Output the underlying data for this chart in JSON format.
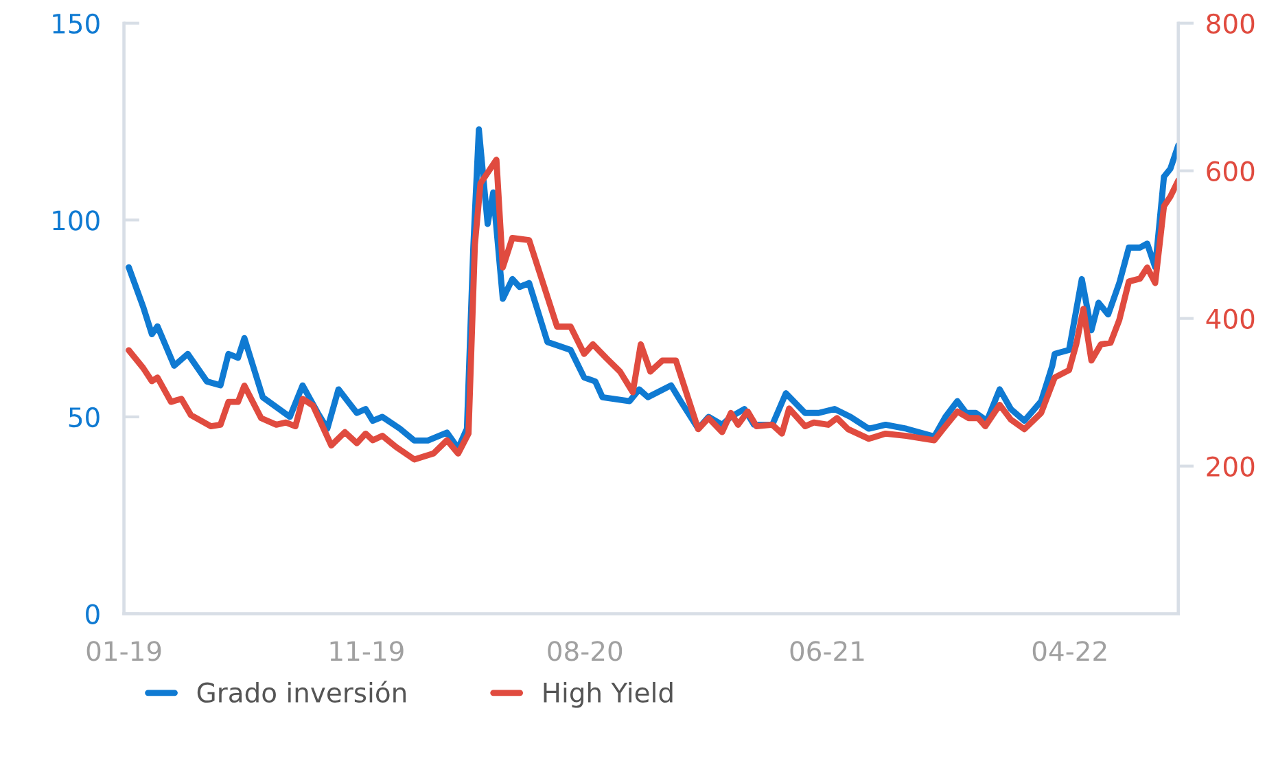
{
  "chart_data": {
    "type": "line",
    "xlim": [
      "2019-01-01",
      "2022-08-15"
    ],
    "xticks": [
      {
        "value": "2019-01-01",
        "label": "01-19"
      },
      {
        "value": "2019-11-01",
        "label": "11-19"
      },
      {
        "value": "2020-08-01",
        "label": "08-20"
      },
      {
        "value": "2021-06-01",
        "label": "06-21"
      },
      {
        "value": "2022-04-01",
        "label": "04-22"
      }
    ],
    "ylim": [
      0,
      150
    ],
    "yticks": [
      0,
      50,
      100,
      150
    ],
    "y2lim": [
      0,
      800
    ],
    "y2ticks": [
      200,
      400,
      600,
      800
    ],
    "grid": false,
    "legend": "bottom",
    "line_style": "solid",
    "marker": "none",
    "series": [
      {
        "name": "Grado inversión",
        "color": "#0f7ad2",
        "x": [
          "2019-01-07",
          "2019-01-25",
          "2019-02-05",
          "2019-02-12",
          "2019-03-05",
          "2019-03-22",
          "2019-04-15",
          "2019-05-02",
          "2019-05-12",
          "2019-05-24",
          "2019-06-01",
          "2019-06-24",
          "2019-07-28",
          "2019-08-13",
          "2019-09-01",
          "2019-09-13",
          "2019-09-27",
          "2019-10-20",
          "2019-10-31",
          "2019-11-09",
          "2019-11-21",
          "2019-12-13",
          "2019-12-31",
          "2020-01-17",
          "2020-02-10",
          "2020-02-24",
          "2020-03-06",
          "2020-03-14",
          "2020-03-21",
          "2020-04-01",
          "2020-04-08",
          "2020-04-20",
          "2020-05-02",
          "2020-05-11",
          "2020-05-23",
          "2020-06-15",
          "2020-07-14",
          "2020-07-31",
          "2020-08-14",
          "2020-08-23",
          "2020-09-26",
          "2020-10-08",
          "2020-10-19",
          "2020-11-17",
          "2020-11-29",
          "2020-12-21",
          "2021-01-03",
          "2021-01-20",
          "2021-01-31",
          "2021-02-17",
          "2021-03-01",
          "2021-03-24",
          "2021-04-10",
          "2021-05-04",
          "2021-05-21",
          "2021-06-10",
          "2021-06-30",
          "2021-07-23",
          "2021-08-13",
          "2021-09-08",
          "2021-10-13",
          "2021-10-27",
          "2021-11-11",
          "2021-11-22",
          "2021-12-04",
          "2021-12-18",
          "2022-01-03",
          "2022-01-17",
          "2022-02-03",
          "2022-02-24",
          "2022-03-10",
          "2022-03-13",
          "2022-03-31",
          "2022-04-16",
          "2022-04-28",
          "2022-05-07",
          "2022-05-19",
          "2022-06-02",
          "2022-06-14",
          "2022-06-28",
          "2022-07-07",
          "2022-07-17",
          "2022-07-28",
          "2022-08-05",
          "2022-08-15"
        ],
        "values": [
          88,
          78,
          71,
          73,
          63,
          66,
          59,
          58,
          66,
          65,
          70,
          55,
          50,
          58,
          51,
          47,
          57,
          51,
          52,
          49,
          50,
          47,
          44,
          44,
          46,
          42,
          47,
          93,
          123,
          99,
          107,
          80,
          85,
          83,
          84,
          69,
          67,
          60,
          59,
          55,
          54,
          57,
          55,
          58,
          54,
          47,
          50,
          48,
          50,
          52,
          48,
          48,
          56,
          51,
          51,
          52,
          50,
          47,
          48,
          47,
          45,
          50,
          54,
          51,
          51,
          49,
          57,
          52,
          49,
          54,
          63,
          66,
          67,
          85,
          72,
          79,
          76,
          84,
          93,
          93,
          94,
          88,
          111,
          113,
          119
        ]
      },
      {
        "name": "High Yield",
        "color": "#e04b3f",
        "axis": "y2",
        "x": [
          "2019-01-07",
          "2019-01-25",
          "2019-02-05",
          "2019-02-12",
          "2019-03-01",
          "2019-03-14",
          "2019-03-26",
          "2019-04-20",
          "2019-05-02",
          "2019-05-12",
          "2019-05-24",
          "2019-06-01",
          "2019-06-22",
          "2019-07-11",
          "2019-07-23",
          "2019-08-04",
          "2019-08-13",
          "2019-08-26",
          "2019-09-18",
          "2019-10-05",
          "2019-10-20",
          "2019-10-31",
          "2019-11-09",
          "2019-11-21",
          "2019-12-08",
          "2019-12-31",
          "2020-01-24",
          "2020-02-10",
          "2020-02-24",
          "2020-03-08",
          "2020-03-16",
          "2020-03-23",
          "2020-04-12",
          "2020-04-20",
          "2020-05-02",
          "2020-05-23",
          "2020-06-27",
          "2020-07-14",
          "2020-07-31",
          "2020-08-11",
          "2020-08-28",
          "2020-09-14",
          "2020-09-30",
          "2020-10-10",
          "2020-10-22",
          "2020-11-06",
          "2020-11-23",
          "2020-12-21",
          "2021-01-03",
          "2021-01-20",
          "2021-01-31",
          "2021-02-09",
          "2021-02-21",
          "2021-03-04",
          "2021-03-24",
          "2021-04-05",
          "2021-04-14",
          "2021-05-04",
          "2021-05-15",
          "2021-06-02",
          "2021-06-13",
          "2021-06-27",
          "2021-07-23",
          "2021-08-13",
          "2021-09-08",
          "2021-10-13",
          "2021-10-27",
          "2021-11-11",
          "2021-11-25",
          "2021-12-07",
          "2021-12-16",
          "2022-01-03",
          "2022-01-17",
          "2022-02-03",
          "2022-02-24",
          "2022-03-13",
          "2022-03-31",
          "2022-04-09",
          "2022-04-18",
          "2022-04-28",
          "2022-05-10",
          "2022-05-22",
          "2022-06-02",
          "2022-06-14",
          "2022-06-28",
          "2022-07-07",
          "2022-07-17",
          "2022-07-28",
          "2022-08-05",
          "2022-08-15"
        ],
        "values": [
          357,
          333,
          315,
          320,
          287,
          291,
          269,
          254,
          256,
          287,
          287,
          309,
          265,
          256,
          259,
          254,
          291,
          282,
          228,
          246,
          231,
          244,
          235,
          241,
          226,
          209,
          217,
          235,
          217,
          244,
          500,
          583,
          615,
          469,
          509,
          506,
          389,
          389,
          352,
          365,
          346,
          328,
          300,
          365,
          328,
          343,
          343,
          250,
          265,
          246,
          272,
          256,
          274,
          254,
          256,
          244,
          278,
          254,
          259,
          256,
          265,
          250,
          237,
          244,
          241,
          235,
          254,
          274,
          265,
          265,
          254,
          283,
          263,
          250,
          272,
          320,
          330,
          365,
          413,
          343,
          365,
          367,
          398,
          450,
          454,
          469,
          448,
          552,
          565,
          587
        ]
      }
    ]
  }
}
